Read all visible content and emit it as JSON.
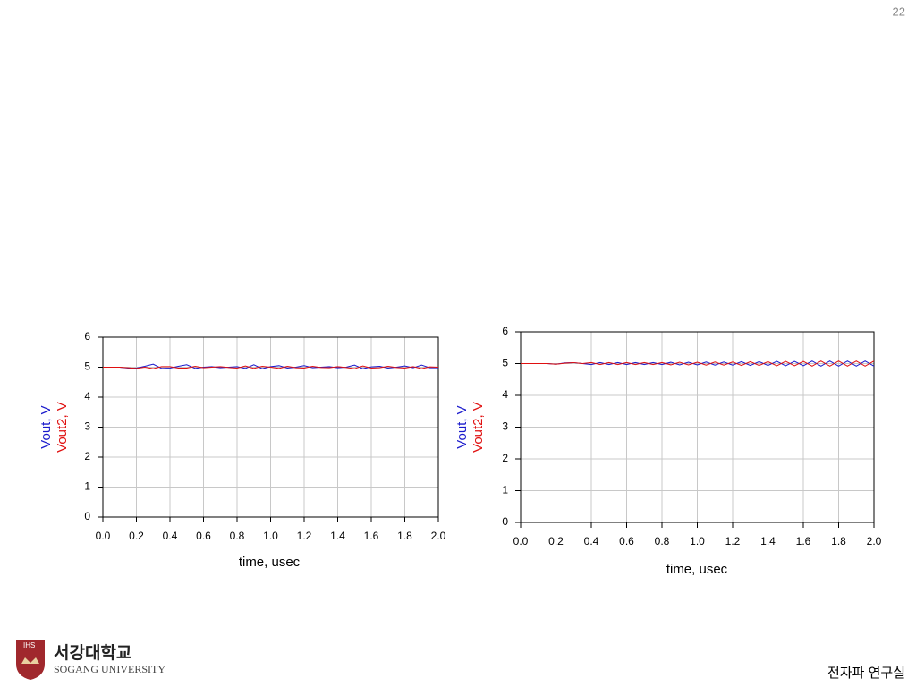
{
  "page_number": "22",
  "logo": {
    "badge": "IHS",
    "korean": "서강대학교",
    "english": "SOGANG UNIVERSITY"
  },
  "footer": "전자파 연구실",
  "chart_data": [
    {
      "type": "line",
      "xlabel": "time, usec",
      "x": [
        0,
        0.05,
        0.1,
        0.15,
        0.2,
        0.25,
        0.3,
        0.35,
        0.4,
        0.45,
        0.5,
        0.55,
        0.6,
        0.65,
        0.7,
        0.75,
        0.8,
        0.85,
        0.9,
        0.95,
        1,
        1.05,
        1.1,
        1.15,
        1.2,
        1.25,
        1.3,
        1.35,
        1.4,
        1.45,
        1.5,
        1.55,
        1.6,
        1.65,
        1.7,
        1.75,
        1.8,
        1.85,
        1.9,
        1.95,
        2
      ],
      "xlim": [
        0,
        2
      ],
      "xticks": [
        {
          "value": 0,
          "label": "0.0"
        },
        0.2,
        0.4,
        0.6,
        0.8,
        {
          "value": 1,
          "label": "1.0"
        },
        1.2,
        1.4,
        1.6,
        1.8,
        {
          "value": 2,
          "label": "2.0"
        }
      ],
      "ylim": [
        0,
        6
      ],
      "yticks": [
        0,
        1,
        2,
        3,
        4,
        5,
        6
      ],
      "grid": true,
      "series": [
        {
          "name": "Vout, V",
          "color": "#1a1acc",
          "values": [
            5,
            5,
            5,
            4.97,
            4.97,
            5.03,
            5.1,
            4.96,
            4.97,
            5.03,
            5.08,
            4.96,
            5.0,
            5.02,
            4.98,
            5.0,
            5.02,
            4.96,
            5.08,
            4.95,
            5.02,
            5.05,
            4.97,
            5.0,
            5.05,
            4.98,
            5.0,
            5.02,
            4.98,
            5.0,
            5.07,
            4.95,
            5.01,
            5.03,
            4.97,
            5.0,
            5.04,
            4.98,
            5.07,
            4.98,
            4.98
          ]
        },
        {
          "name": "Vout2, V",
          "color": "#e01010",
          "values": [
            5,
            5,
            5,
            4.98,
            4.96,
            5.0,
            4.95,
            5.02,
            5.02,
            4.97,
            4.97,
            5.03,
            4.98,
            5.0,
            5.02,
            4.99,
            4.97,
            5.04,
            4.96,
            5.03,
            5.0,
            4.96,
            5.03,
            4.98,
            4.97,
            5.03,
            4.99,
            4.98,
            5.02,
            4.99,
            4.95,
            5.04,
            4.97,
            4.98,
            5.03,
            4.99,
            4.97,
            5.02,
            4.95,
            5.01,
            5.0
          ]
        }
      ]
    },
    {
      "type": "line",
      "xlabel": "time, usec",
      "x": [
        0,
        0.05,
        0.1,
        0.15,
        0.2,
        0.25,
        0.3,
        0.35,
        0.4,
        0.45,
        0.5,
        0.55,
        0.6,
        0.65,
        0.7,
        0.75,
        0.8,
        0.85,
        0.9,
        0.95,
        1,
        1.05,
        1.1,
        1.15,
        1.2,
        1.25,
        1.3,
        1.35,
        1.4,
        1.45,
        1.5,
        1.55,
        1.6,
        1.65,
        1.7,
        1.75,
        1.8,
        1.85,
        1.9,
        1.95,
        2
      ],
      "xlim": [
        0,
        2
      ],
      "xticks": [
        {
          "value": 0,
          "label": "0.0"
        },
        0.2,
        0.4,
        0.6,
        0.8,
        {
          "value": 1,
          "label": "1.0"
        },
        1.2,
        1.4,
        1.6,
        1.8,
        {
          "value": 2,
          "label": "2.0"
        }
      ],
      "ylim": [
        0,
        6
      ],
      "yticks": [
        0,
        1,
        2,
        3,
        4,
        5,
        6
      ],
      "grid": true,
      "series": [
        {
          "name": "Vout, V",
          "color": "#1a1acc",
          "values": [
            5,
            5,
            5,
            5,
            4.98,
            5.02,
            5.03,
            5.0,
            4.97,
            5.03,
            4.97,
            5.03,
            4.97,
            5.03,
            4.97,
            5.03,
            4.97,
            5.04,
            4.96,
            5.04,
            4.96,
            5.05,
            4.95,
            5.05,
            4.95,
            5.06,
            4.94,
            5.06,
            4.94,
            5.07,
            4.93,
            5.07,
            4.93,
            5.08,
            4.92,
            5.08,
            4.92,
            5.08,
            4.92,
            5.08,
            4.92
          ]
        },
        {
          "name": "Vout2, V",
          "color": "#e01010",
          "values": [
            5,
            5,
            5,
            5,
            4.98,
            5.01,
            5.03,
            5.0,
            5.03,
            4.97,
            5.03,
            4.97,
            5.03,
            4.97,
            5.03,
            4.97,
            5.03,
            4.96,
            5.04,
            4.96,
            5.04,
            4.95,
            5.05,
            4.95,
            5.05,
            4.94,
            5.06,
            4.94,
            5.06,
            4.93,
            5.07,
            4.93,
            5.07,
            4.92,
            5.08,
            4.92,
            5.08,
            4.92,
            5.08,
            4.92,
            5.08
          ]
        }
      ]
    }
  ]
}
